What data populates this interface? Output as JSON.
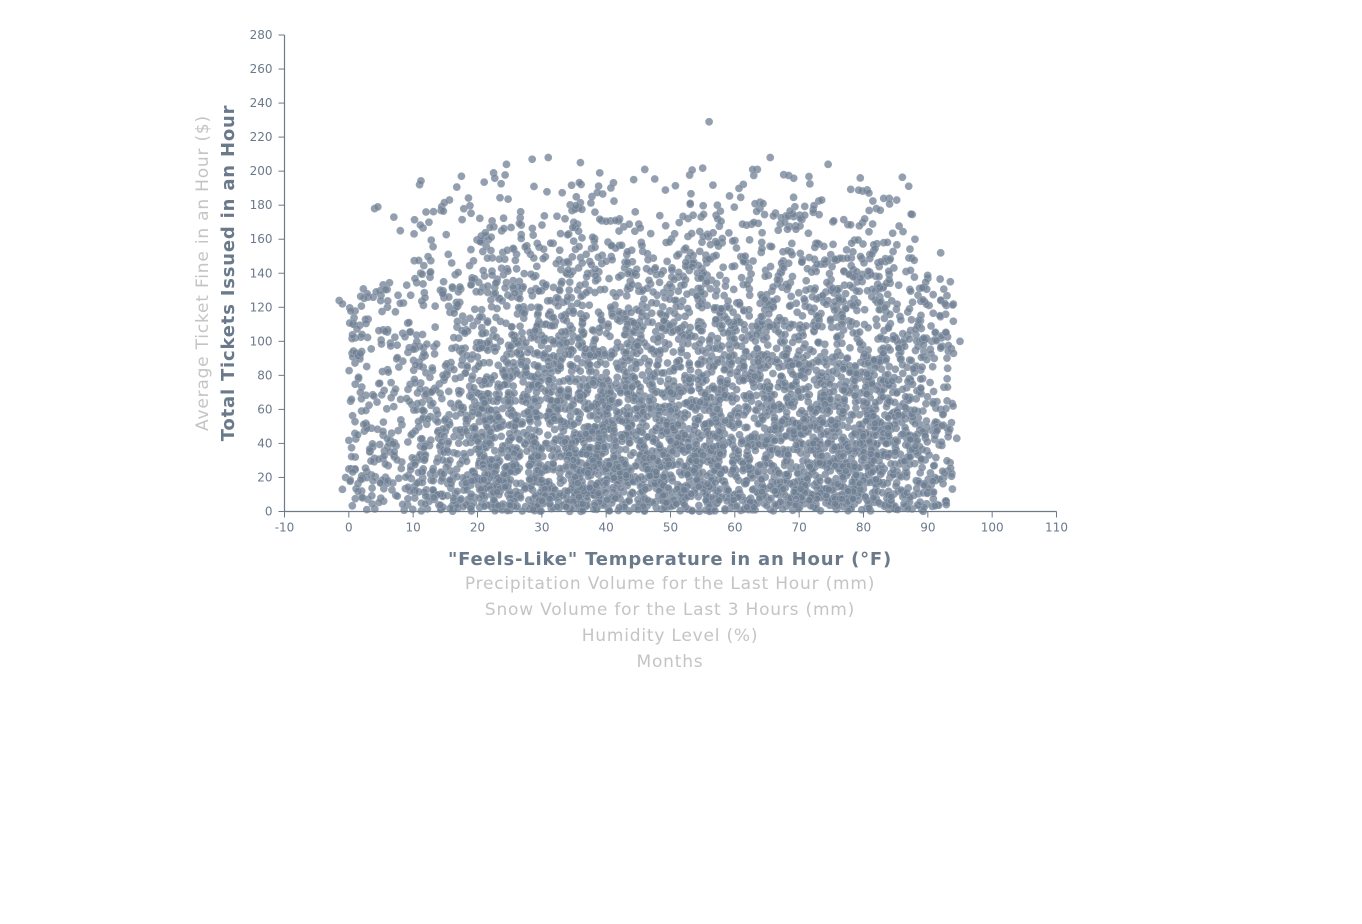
{
  "chart_data": {
    "type": "scatter",
    "title": "",
    "xlabel_active": "\"Feels-Like\" Temperature in an Hour (°F)",
    "xlabel_options": [
      "Precipitation Volume for the Last Hour (mm)",
      "Snow Volume for the Last 3 Hours (mm)",
      "Humidity Level (%)",
      "Months"
    ],
    "ylabel_active": "Total Tickets Issued in an Hour",
    "ylabel_options": [
      "Average Ticket Fine in an Hour ($)"
    ],
    "xlim": [
      -10,
      110
    ],
    "ylim": [
      0,
      280
    ],
    "x_ticks": [
      -10,
      0,
      10,
      20,
      30,
      40,
      50,
      60,
      70,
      80,
      90,
      100,
      110
    ],
    "y_ticks": [
      0,
      20,
      40,
      60,
      80,
      100,
      120,
      140,
      160,
      180,
      200,
      220,
      240,
      260,
      280
    ],
    "grid": false,
    "colors": {
      "point": "#6f7f93",
      "axis": "#6b7a8b",
      "inactive_label": "#c4c4c4"
    },
    "series": [
      {
        "points": [
          [
            56,
            229
          ],
          [
            65.5,
            208
          ],
          [
            31,
            208
          ],
          [
            28.5,
            207
          ],
          [
            24.5,
            204
          ],
          [
            74.5,
            204
          ],
          [
            36,
            205
          ],
          [
            46,
            201
          ],
          [
            63.5,
            201
          ],
          [
            39,
            199
          ],
          [
            22.5,
            199
          ],
          [
            79.5,
            196
          ],
          [
            17.5,
            197
          ],
          [
            11,
            192
          ],
          [
            -1.5,
            124
          ],
          [
            -1,
            122
          ],
          [
            4,
            178
          ],
          [
            4.5,
            179
          ],
          [
            7,
            173
          ],
          [
            8,
            165
          ],
          [
            12,
            176
          ],
          [
            9,
            133
          ],
          [
            3,
            126
          ],
          [
            5,
            127
          ],
          [
            6,
            120
          ],
          [
            3,
            113
          ],
          [
            1,
            102
          ],
          [
            2,
            94
          ],
          [
            0.5,
            93
          ],
          [
            1.5,
            78
          ],
          [
            -0.5,
            20
          ],
          [
            -1,
            13
          ],
          [
            0,
            25
          ],
          [
            1,
            32
          ],
          [
            2,
            12
          ],
          [
            92,
            152
          ],
          [
            93.5,
            135
          ],
          [
            95,
            100
          ],
          [
            94.5,
            43
          ],
          [
            91.5,
            4
          ],
          [
            92,
            124
          ],
          [
            90,
            137
          ],
          [
            88,
            160
          ],
          [
            84,
            184
          ],
          [
            82,
            178
          ],
          [
            90.5,
            109
          ],
          [
            91,
            90
          ],
          [
            92.5,
            73
          ],
          [
            91,
            51
          ],
          [
            91,
            27
          ],
          [
            90,
            11
          ],
          [
            89,
            30
          ],
          [
            93,
            65
          ],
          [
            93,
            78
          ],
          [
            92,
            60
          ]
        ]
      }
    ]
  }
}
